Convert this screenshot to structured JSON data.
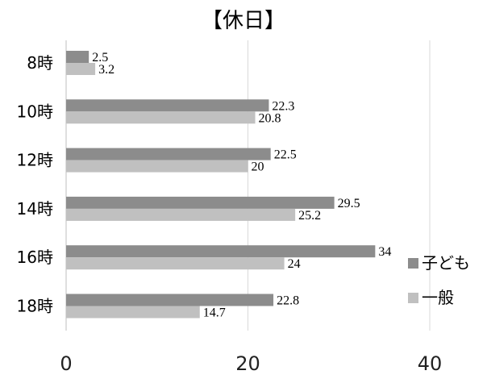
{
  "chart_data": {
    "type": "bar",
    "orientation": "horizontal",
    "title": "【休日】",
    "categories": [
      "8時",
      "10時",
      "12時",
      "14時",
      "16時",
      "18時"
    ],
    "series": [
      {
        "name": "子ども",
        "values": [
          2.5,
          22.3,
          22.5,
          29.5,
          34,
          22.8
        ],
        "color": "#8c8c8c"
      },
      {
        "name": "一般",
        "values": [
          3.2,
          20.8,
          20,
          25.2,
          24,
          14.7
        ],
        "color": "#c0c0c0"
      }
    ],
    "xlim": [
      0,
      40
    ],
    "xticks": [
      0,
      20,
      40
    ],
    "grid": true,
    "legend": "right"
  }
}
